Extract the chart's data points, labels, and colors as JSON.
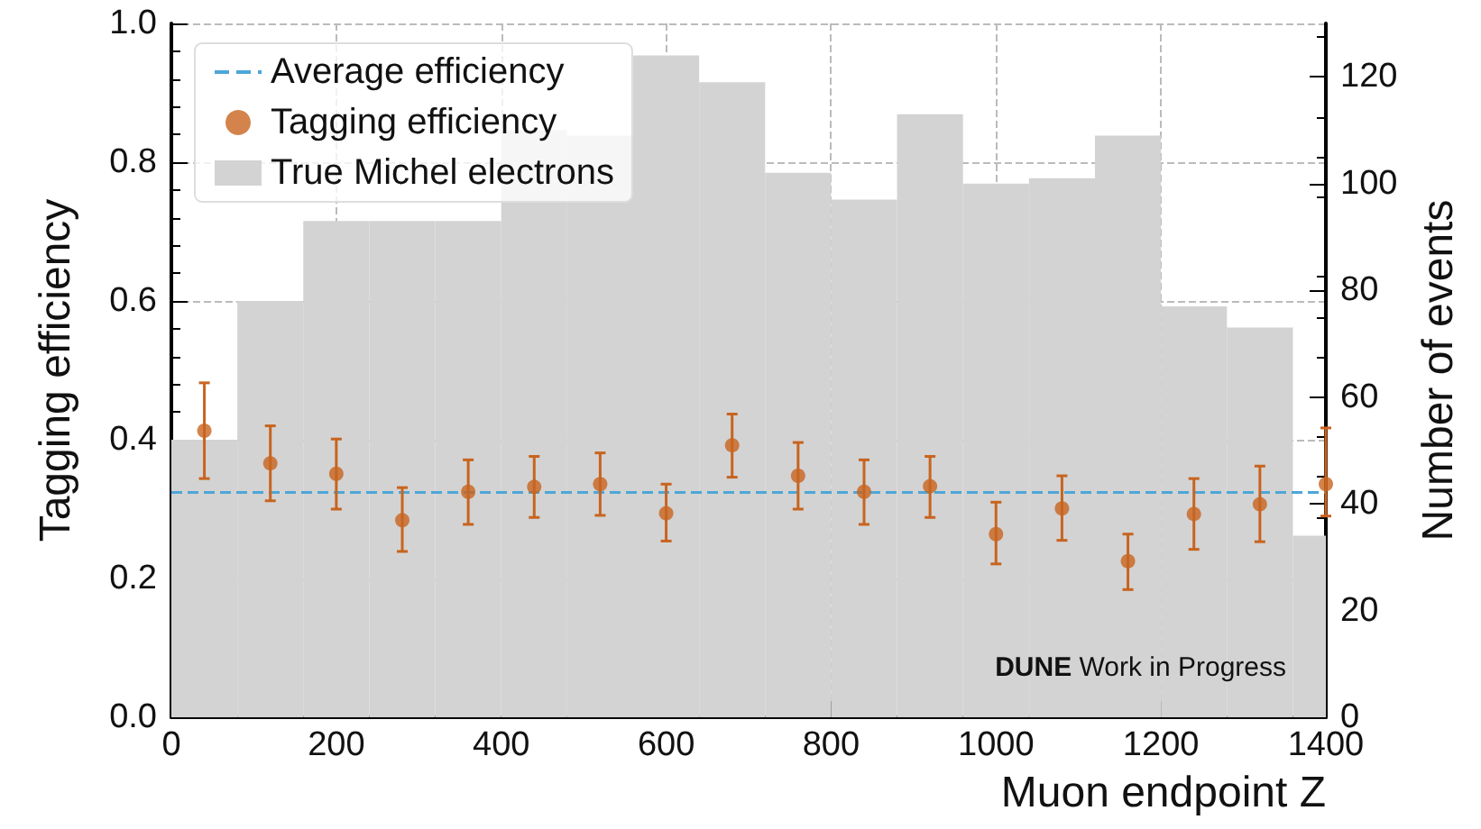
{
  "chart_data": {
    "type": "histogram",
    "xlabel": "Muon endpoint Z",
    "ylabel": "Tagging efficiency",
    "y2label": "Number of events",
    "xlim": [
      0,
      1400
    ],
    "xticks": [
      0,
      200,
      400,
      600,
      800,
      1000,
      1200,
      1400
    ],
    "ylim": [
      0,
      1
    ],
    "yticks": [
      {
        "value": 0,
        "label": "0.0"
      },
      {
        "value": 0.2,
        "label": "0.2"
      },
      {
        "value": 0.4,
        "label": "0.4"
      },
      {
        "value": 0.6,
        "label": "0.6"
      },
      {
        "value": 0.8,
        "label": "0.8"
      },
      {
        "value": 1,
        "label": "1.0"
      }
    ],
    "y2lim": [
      0,
      130
    ],
    "y2ticks": [
      0,
      20,
      40,
      60,
      80,
      100,
      120
    ],
    "grid": true,
    "legend": "top left",
    "series": [
      {
        "name": "True Michel electrons",
        "color": "#d3d3d3",
        "axis": "y2",
        "bins": [
          0,
          80,
          160,
          240,
          320,
          400,
          480,
          560,
          640,
          720,
          800,
          880,
          960,
          1040,
          1120,
          1200,
          1280,
          1360,
          1400
        ],
        "values": [
          52,
          78,
          93,
          93,
          93,
          110,
          109,
          124,
          119,
          102,
          97,
          113,
          100,
          101,
          109,
          77,
          73,
          34
        ]
      },
      {
        "type": "scatter",
        "name": "Tagging efficiency",
        "color": "#c8641e",
        "marker": "circle",
        "x": [
          40,
          120,
          200,
          280,
          360,
          440,
          520,
          600,
          680,
          760,
          840,
          920,
          1000,
          1080,
          1160,
          1240,
          1320,
          1400
        ],
        "values": [
          0.413,
          0.366,
          0.351,
          0.284,
          0.325,
          0.332,
          0.336,
          0.294,
          0.392,
          0.348,
          0.325,
          0.333,
          0.264,
          0.301,
          0.225,
          0.293,
          0.307,
          0.336
        ],
        "errors": [
          [
            0.344,
            0.482
          ],
          [
            0.312,
            0.42
          ],
          [
            0.3,
            0.401
          ],
          [
            0.239,
            0.331
          ],
          [
            0.278,
            0.371
          ],
          [
            0.288,
            0.376
          ],
          [
            0.291,
            0.381
          ],
          [
            0.254,
            0.336
          ],
          [
            0.346,
            0.437
          ],
          [
            0.3,
            0.396
          ],
          [
            0.278,
            0.371
          ],
          [
            0.288,
            0.376
          ],
          [
            0.221,
            0.31
          ],
          [
            0.255,
            0.348
          ],
          [
            0.184,
            0.264
          ],
          [
            0.242,
            0.344
          ],
          [
            0.253,
            0.362
          ],
          [
            0.29,
            0.417
          ]
        ]
      }
    ],
    "ref_lines": [
      {
        "axis": "y",
        "value": 0.324,
        "label": "Average efficiency",
        "color": "#4ea6d8",
        "line_style": "dashed"
      }
    ],
    "annotations": [
      "DUNE Work in Progress"
    ]
  }
}
